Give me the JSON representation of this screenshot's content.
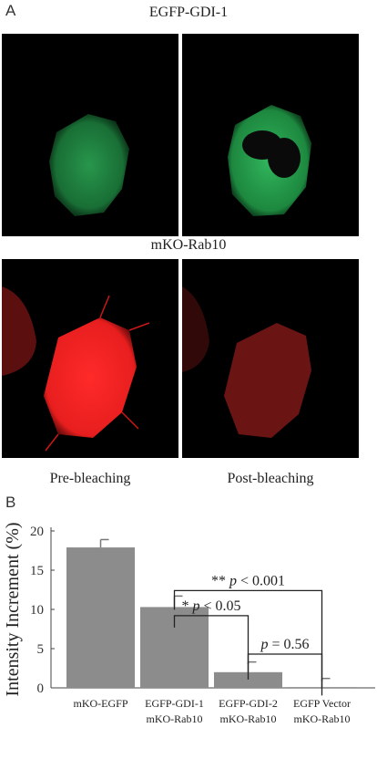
{
  "panel_a": {
    "letter": "A",
    "row1_title": "EGFP-GDI-1",
    "row2_title": "mKO-Rab10",
    "caption_left": "Pre-bleaching",
    "caption_right": "Post-bleaching",
    "colors": {
      "green": "#2fb15a",
      "red": "#e81e1e"
    }
  },
  "panel_b": {
    "letter": "B",
    "annotations": {
      "p1": "** p < 0.001",
      "p2": "* p < 0.05",
      "p3": "p = 0.56"
    }
  },
  "chart_data": {
    "type": "bar",
    "categories": [
      [
        "mKO-EGFP"
      ],
      [
        "EGFP-GDI-1",
        "mKO-Rab10"
      ],
      [
        "EGFP-GDI-2",
        "mKO-Rab10"
      ],
      [
        "EGFP Vector",
        "mKO-Rab10"
      ]
    ],
    "values": [
      17.9,
      10.3,
      2.0,
      0.1
    ],
    "errors": [
      1.0,
      1.4,
      1.3,
      1.1
    ],
    "ylabel": "Intensity Increment (%)",
    "ylim": [
      0,
      20
    ],
    "yticks": [
      0,
      5,
      10,
      15,
      20
    ],
    "bar_color": "#8c8c8c",
    "grid": false
  }
}
